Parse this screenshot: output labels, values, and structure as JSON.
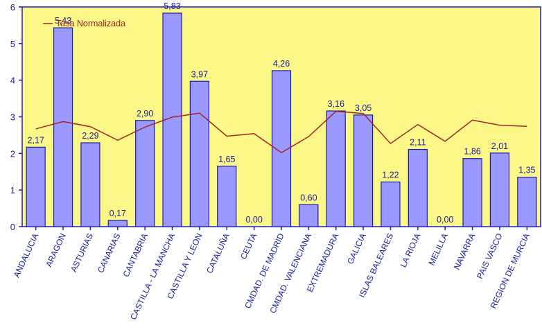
{
  "chart_data": {
    "type": "bar",
    "categories": [
      "ANDALUCIA",
      "ARAGON",
      "ASTURIAS",
      "CANARIAS",
      "CANTABRIA",
      "CASTILLA - LA MANCHA",
      "CASTILLA Y LEON",
      "CATALUÑA",
      "CEUTA",
      "CMDAD. DE MADRID",
      "CMDAD. VALENCIANA",
      "EXTREMADURA",
      "GALICIA",
      "ISLAS BALEARES",
      "LA RIOJA",
      "MELILLA",
      "NAVARRA",
      "PAIS VASCO",
      "REGION DE MURCIA"
    ],
    "series": [
      {
        "type": "bar",
        "values": [
          2.17,
          5.43,
          2.29,
          0.17,
          2.9,
          5.83,
          3.97,
          1.65,
          0.0,
          4.26,
          0.6,
          3.16,
          3.05,
          1.22,
          2.11,
          0.0,
          1.86,
          2.01,
          1.35
        ],
        "labels": [
          "2,17",
          "5,43",
          "2,29",
          "0,17",
          "2,90",
          "5,83",
          "3,97",
          "1,65",
          "0,00",
          "4,26",
          "0,60",
          "3,16",
          "3,05",
          "1,22",
          "2,11",
          "0,00",
          "1,86",
          "2,01",
          "1,35"
        ]
      },
      {
        "type": "line",
        "name": "Tasa Normalizada",
        "values": [
          2.67,
          2.87,
          2.73,
          2.36,
          2.72,
          2.99,
          3.1,
          2.47,
          2.54,
          2.02,
          2.46,
          3.15,
          3.09,
          2.27,
          2.79,
          2.33,
          2.91,
          2.77,
          2.74
        ]
      }
    ],
    "ylim": [
      0,
      6
    ],
    "yticks": [
      "0",
      "1",
      "2",
      "3",
      "4",
      "5",
      "6"
    ],
    "grid": false,
    "legend": "top-left"
  },
  "colors": {
    "plot_bg": "#fbf887",
    "bar_fill": "#9999ff",
    "bar_stroke": "#1a1aa0",
    "line": "#a52323",
    "axis": "#1a1ad0",
    "text": "#1a1aa0"
  }
}
